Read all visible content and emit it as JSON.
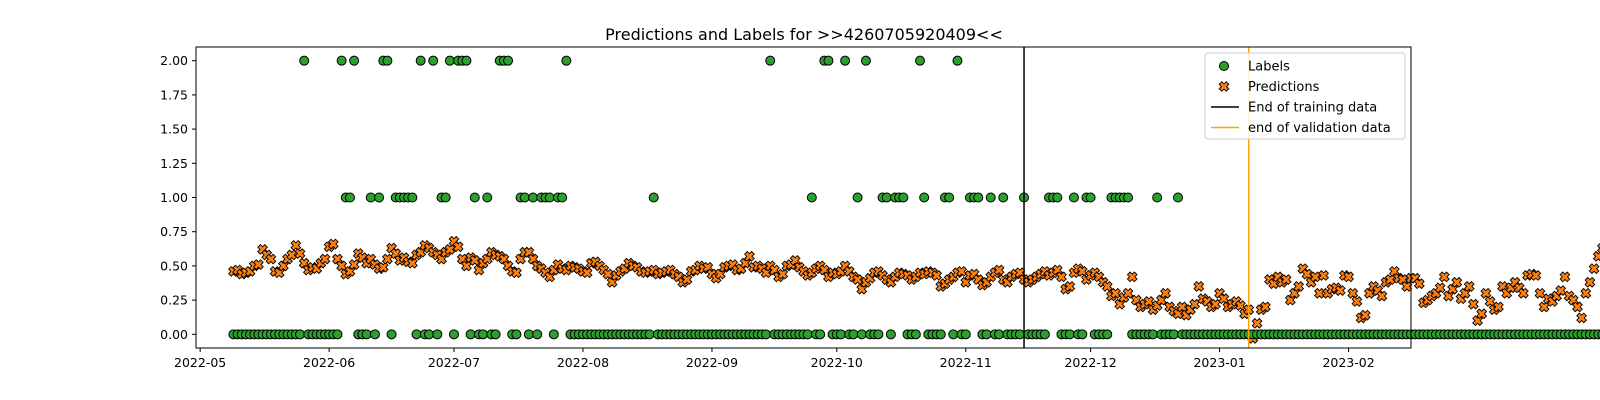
{
  "chart_data": {
    "type": "scatter",
    "title": "Predictions and Labels for >>4260705920409<<",
    "xlabel": "",
    "ylabel": "",
    "xlim": [
      "2022-04-30",
      "2023-02-16"
    ],
    "ylim": [
      -0.1,
      2.1
    ],
    "x_ticks": [
      "2022-05",
      "2022-06",
      "2022-07",
      "2022-08",
      "2022-09",
      "2022-10",
      "2022-11",
      "2022-12",
      "2023-01",
      "2023-02"
    ],
    "x_tick_dates": [
      "2022-05-01",
      "2022-06-01",
      "2022-07-01",
      "2022-08-01",
      "2022-09-01",
      "2022-10-01",
      "2022-11-01",
      "2022-12-01",
      "2023-01-01",
      "2023-02-01"
    ],
    "y_ticks": [
      "0.00",
      "0.25",
      "0.50",
      "0.75",
      "1.00",
      "1.25",
      "1.50",
      "1.75",
      "2.00"
    ],
    "y_tick_values": [
      0,
      0.25,
      0.5,
      0.75,
      1.0,
      1.25,
      1.5,
      1.75,
      2.0
    ],
    "legend_position": "top-right",
    "grid": false,
    "start_date": "2022-05-09",
    "series": [
      {
        "name": "Labels",
        "marker": "circle",
        "color": "#2ca02c",
        "values": [
          0,
          0,
          0,
          0,
          0,
          0,
          0,
          0,
          0,
          0,
          0,
          0,
          0,
          0,
          0,
          0,
          0,
          2,
          0,
          0,
          0,
          0,
          0,
          0,
          0,
          0,
          2,
          1,
          1,
          2,
          0,
          0,
          0,
          1,
          0,
          1,
          2,
          2,
          0,
          1,
          1,
          1,
          1,
          1,
          0,
          2,
          0,
          0,
          2,
          0,
          1,
          1,
          2,
          0,
          2,
          2,
          2,
          0,
          1,
          0,
          0,
          1,
          0,
          0,
          2,
          2,
          2,
          0,
          0,
          1,
          1,
          0,
          1,
          0,
          1,
          1,
          1,
          0,
          1,
          1,
          2,
          0,
          0,
          0,
          0,
          0,
          0,
          0,
          0,
          0,
          0,
          0,
          0,
          0,
          0,
          0,
          0,
          0,
          0,
          0,
          0,
          1,
          0,
          0,
          0,
          0,
          0,
          0,
          0,
          0,
          0,
          0,
          0,
          0,
          0,
          0,
          0,
          0,
          0,
          0,
          0,
          0,
          0,
          0,
          0,
          0,
          0,
          0,
          0,
          2,
          0,
          0,
          0,
          0,
          0,
          0,
          0,
          0,
          0,
          1,
          0,
          0,
          2,
          2,
          0,
          0,
          0,
          2,
          0,
          0,
          1,
          0,
          2,
          0,
          0,
          0,
          1,
          1,
          0,
          1,
          1,
          1,
          0,
          0,
          0,
          2,
          1,
          0,
          0,
          0,
          0,
          1,
          1,
          0,
          2,
          0,
          0,
          1,
          1,
          1,
          0,
          0,
          1,
          0,
          0,
          1,
          0,
          0,
          0,
          0,
          1,
          0,
          0,
          0,
          0,
          0,
          1,
          1,
          1,
          0,
          0,
          0,
          1,
          0,
          0,
          1,
          1,
          0,
          0,
          0,
          0,
          1,
          1,
          1,
          1,
          1,
          0,
          0,
          0,
          0,
          0,
          0,
          1,
          0,
          0,
          0,
          0,
          1,
          0,
          0,
          0,
          0,
          0,
          0,
          0,
          0,
          0,
          0,
          0,
          0,
          0,
          0,
          0,
          0,
          0,
          0,
          0,
          0,
          0,
          0,
          0,
          0,
          0,
          0,
          0,
          0,
          0,
          0,
          0,
          0,
          0,
          0,
          0,
          0,
          0,
          0,
          0,
          0,
          0,
          0,
          0,
          0,
          0,
          0,
          0,
          0,
          0,
          0,
          0,
          0,
          0,
          0,
          0,
          0,
          0,
          0,
          0,
          0,
          0,
          0,
          0,
          0,
          0,
          0,
          0,
          0,
          0,
          0,
          0,
          0,
          0,
          0,
          0,
          0,
          0,
          0,
          0,
          0,
          0,
          0,
          0,
          0,
          0,
          0,
          0,
          0,
          0,
          0,
          0,
          0,
          0,
          0,
          0,
          0,
          0,
          0,
          0,
          0,
          0,
          0,
          0,
          0,
          0,
          0,
          0,
          0,
          0,
          0,
          0,
          0,
          0,
          0,
          0,
          0,
          0,
          0,
          0,
          0
        ]
      },
      {
        "name": "Predictions",
        "marker": "x",
        "color": "#ff7f0e",
        "values": [
          0.46,
          0.47,
          0.44,
          0.45,
          0.46,
          0.5,
          0.51,
          0.62,
          0.58,
          0.55,
          0.46,
          0.45,
          0.5,
          0.55,
          0.58,
          0.65,
          0.59,
          0.52,
          0.47,
          0.49,
          0.48,
          0.52,
          0.55,
          0.64,
          0.66,
          0.55,
          0.5,
          0.44,
          0.46,
          0.51,
          0.59,
          0.56,
          0.52,
          0.55,
          0.51,
          0.48,
          0.49,
          0.55,
          0.63,
          0.59,
          0.54,
          0.56,
          0.53,
          0.52,
          0.58,
          0.6,
          0.65,
          0.63,
          0.6,
          0.58,
          0.55,
          0.6,
          0.62,
          0.68,
          0.64,
          0.55,
          0.5,
          0.56,
          0.54,
          0.47,
          0.52,
          0.55,
          0.6,
          0.58,
          0.57,
          0.55,
          0.5,
          0.46,
          0.45,
          0.55,
          0.6,
          0.6,
          0.55,
          0.5,
          0.48,
          0.45,
          0.42,
          0.47,
          0.51,
          0.48,
          0.47,
          0.5,
          0.49,
          0.48,
          0.46,
          0.45,
          0.52,
          0.53,
          0.5,
          0.47,
          0.44,
          0.38,
          0.43,
          0.46,
          0.48,
          0.52,
          0.5,
          0.49,
          0.46,
          0.45,
          0.46,
          0.47,
          0.44,
          0.45,
          0.46,
          0.47,
          0.44,
          0.42,
          0.38,
          0.4,
          0.46,
          0.47,
          0.5,
          0.48,
          0.49,
          0.44,
          0.41,
          0.44,
          0.49,
          0.5,
          0.51,
          0.47,
          0.48,
          0.52,
          0.57,
          0.49,
          0.5,
          0.48,
          0.45,
          0.5,
          0.47,
          0.42,
          0.44,
          0.5,
          0.51,
          0.54,
          0.49,
          0.46,
          0.43,
          0.45,
          0.48,
          0.5,
          0.47,
          0.42,
          0.45,
          0.44,
          0.46,
          0.5,
          0.46,
          0.42,
          0.4,
          0.33,
          0.38,
          0.41,
          0.45,
          0.46,
          0.43,
          0.4,
          0.38,
          0.42,
          0.45,
          0.44,
          0.43,
          0.4,
          0.42,
          0.45,
          0.44,
          0.46,
          0.45,
          0.43,
          0.35,
          0.37,
          0.4,
          0.42,
          0.45,
          0.46,
          0.38,
          0.43,
          0.44,
          0.4,
          0.36,
          0.38,
          0.42,
          0.45,
          0.47,
          0.4,
          0.38,
          0.42,
          0.44,
          0.45,
          0.4,
          0.38,
          0.4,
          0.42,
          0.44,
          0.46,
          0.43,
          0.45,
          0.47,
          0.42,
          0.33,
          0.35,
          0.45,
          0.48,
          0.46,
          0.4,
          0.43,
          0.45,
          0.42,
          0.38,
          0.35,
          0.28,
          0.3,
          0.22,
          0.27,
          0.3,
          0.42,
          0.25,
          0.2,
          0.22,
          0.24,
          0.18,
          0.21,
          0.25,
          0.3,
          0.2,
          0.17,
          0.15,
          0.2,
          0.14,
          0.18,
          0.22,
          0.35,
          0.26,
          0.24,
          0.2,
          0.22,
          0.3,
          0.26,
          0.2,
          0.22,
          0.24,
          0.21,
          0.15,
          0.18,
          -0.03,
          0.08,
          0.18,
          0.2,
          0.4,
          0.37,
          0.42,
          0.38,
          0.4,
          0.25,
          0.3,
          0.35,
          0.48,
          0.44,
          0.38,
          0.42,
          0.3,
          0.43,
          0.3,
          0.33,
          0.34,
          0.32,
          0.43,
          0.42,
          0.3,
          0.24,
          0.12,
          0.14,
          0.3,
          0.35,
          0.32,
          0.28,
          0.38,
          0.4,
          0.46,
          0.41,
          0.4,
          0.35,
          0.41,
          0.41,
          0.37,
          0.23,
          0.25,
          0.28,
          0.3,
          0.34,
          0.42,
          0.28,
          0.33,
          0.38,
          0.26,
          0.3,
          0.35,
          0.22,
          0.1,
          0.15,
          0.3,
          0.24,
          0.18,
          0.2,
          0.35,
          0.3,
          0.34,
          0.38,
          0.34,
          0.3,
          0.43,
          0.44,
          0.43,
          0.3,
          0.2,
          0.26,
          0.24,
          0.28,
          0.32,
          0.42,
          0.28,
          0.25,
          0.2,
          0.12,
          0.3,
          0.38,
          0.48,
          0.57,
          0.63,
          0.45
        ]
      }
    ],
    "vlines": [
      {
        "name": "End of training data",
        "date": "2022-11-15",
        "color": "#000000"
      },
      {
        "name": "end of validation data",
        "date": "2023-01-08",
        "color": "#ffa500"
      }
    ]
  }
}
